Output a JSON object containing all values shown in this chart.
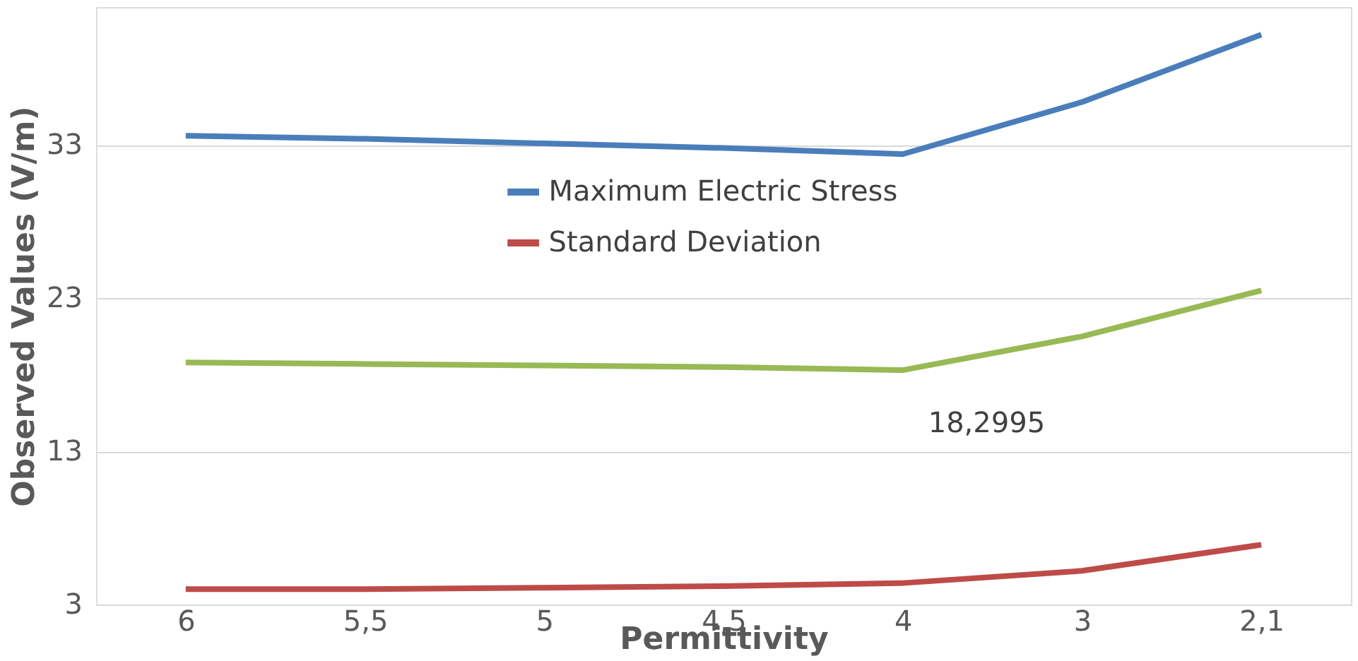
{
  "chart_data": {
    "type": "line",
    "xlabel": "Permittivity",
    "ylabel": "Observed Values (V/m)",
    "categories": [
      "6",
      "5,5",
      "5",
      "4,5",
      "4",
      "3",
      "2,1"
    ],
    "ylim": [
      3,
      42
    ],
    "yticks": [
      3,
      13,
      23,
      33
    ],
    "grid": "y",
    "legend": "top",
    "line_style": "solid",
    "marker": "none",
    "series": [
      {
        "name": "Maximum Electric Stress",
        "color": "#4a7ebb",
        "values": [
          33.6,
          33.4,
          33.1,
          32.8,
          32.4,
          35.8,
          40.2
        ]
      },
      {
        "name": "Standard Deviation",
        "color": "#be4b48",
        "values": [
          4.0,
          4.0,
          4.1,
          4.2,
          4.4,
          5.2,
          6.9
        ]
      },
      {
        "color": "#98b954",
        "values": [
          18.8,
          18.7,
          18.6,
          18.5,
          18.2995,
          20.5,
          23.5
        ],
        "value_labels": [
          null,
          null,
          null,
          null,
          "18,2995",
          null,
          null
        ]
      }
    ]
  }
}
